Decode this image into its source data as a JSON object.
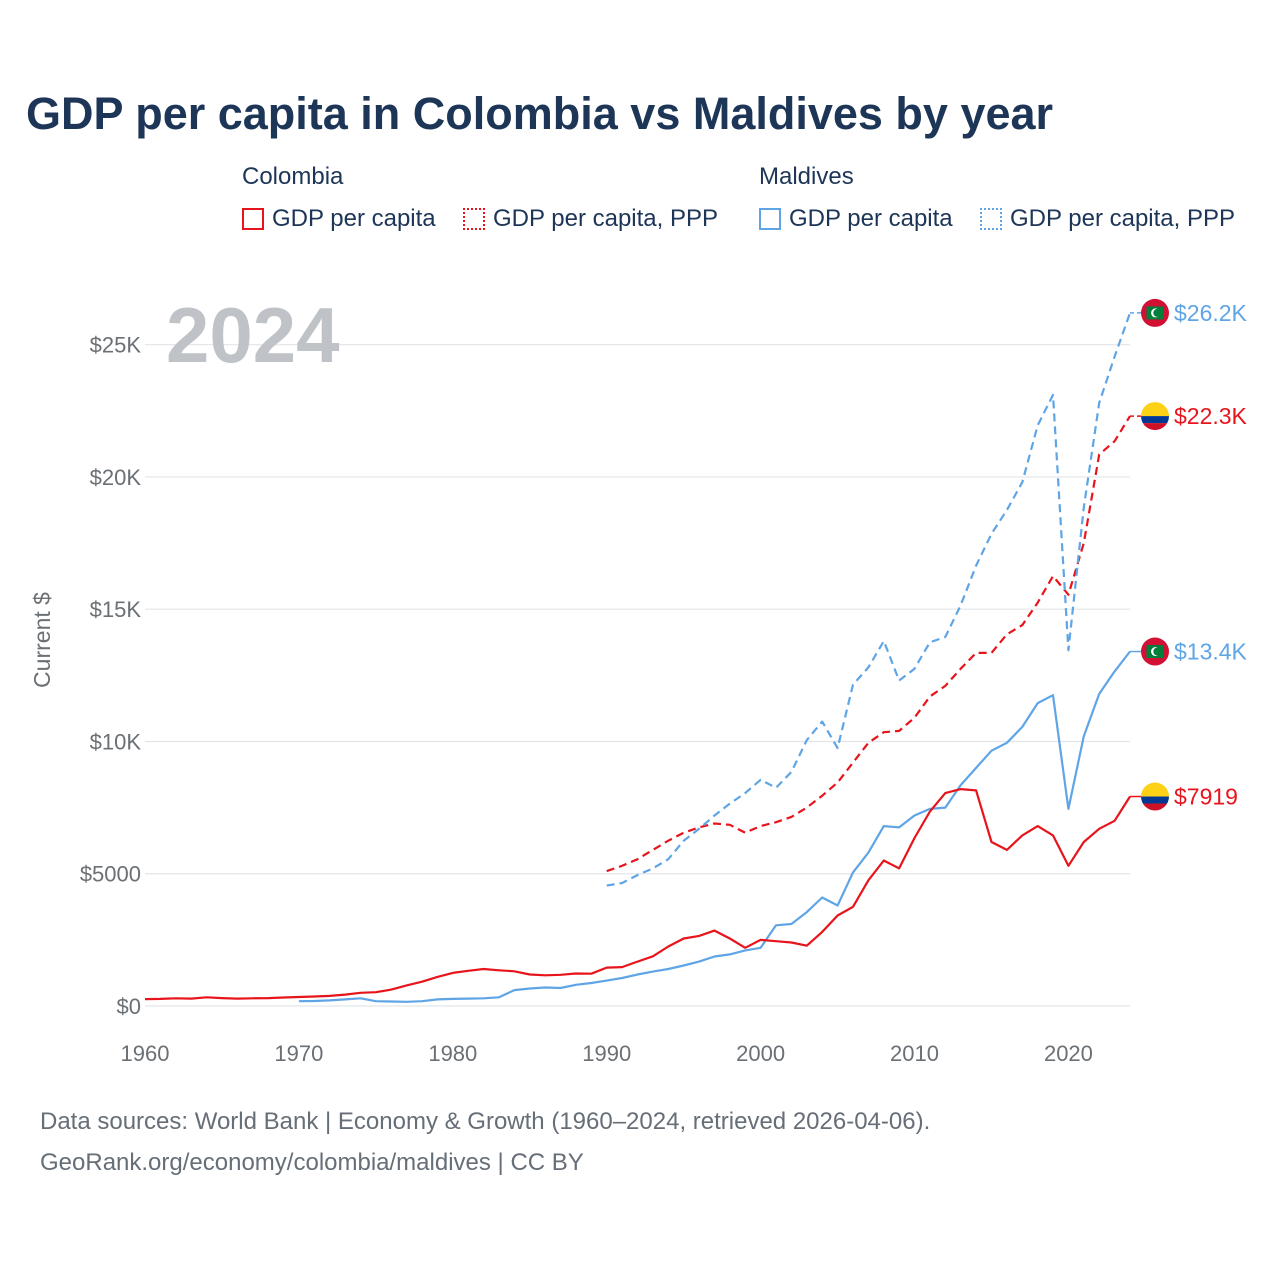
{
  "page": {
    "title": "GDP per capita in Colombia vs Maldives by year",
    "footer_line1": "Data sources: World Bank | Economy & Growth (1960–2024, retrieved 2026-04-06).",
    "footer_line2": "GeoRank.org/economy/colombia/maldives | CC BY"
  },
  "legend": {
    "groups": [
      {
        "title": "Colombia",
        "color": "#e8141c",
        "items": [
          {
            "label": "GDP per capita",
            "style": "solid"
          },
          {
            "label": "GDP per capita, PPP",
            "style": "dotted"
          }
        ]
      },
      {
        "title": "Maldives",
        "color": "#5fa5e6",
        "items": [
          {
            "label": "GDP per capita",
            "style": "solid"
          },
          {
            "label": "GDP per capita, PPP",
            "style": "dotted"
          }
        ]
      }
    ]
  },
  "chart_data": {
    "type": "line",
    "title": "GDP per capita in Colombia vs Maldives by year",
    "ylabel": "Current $",
    "xlabel": "",
    "year_label": "2024",
    "xlim": [
      1960,
      2024
    ],
    "ylim": [
      0,
      26500
    ],
    "x_ticks": [
      1960,
      1970,
      1980,
      1990,
      2000,
      2010,
      2020
    ],
    "x_tick_labels": [
      "1960",
      "1970",
      "1980",
      "1990",
      "2000",
      "2010",
      "2020"
    ],
    "y_ticks": [
      0,
      5000,
      10000,
      15000,
      20000,
      25000
    ],
    "y_tick_labels": [
      "$0",
      "$5000",
      "$10K",
      "$15K",
      "$20K",
      "$25K"
    ],
    "series": [
      {
        "name": "Colombia GDP per capita, PPP",
        "country": "Colombia",
        "color": "#e8141c",
        "dash": "dashed",
        "end_label": "$22.3K",
        "x": [
          1990,
          1991,
          1992,
          1993,
          1994,
          1995,
          1996,
          1997,
          1998,
          1999,
          2000,
          2001,
          2002,
          2003,
          2004,
          2005,
          2006,
          2007,
          2008,
          2009,
          2010,
          2011,
          2012,
          2013,
          2014,
          2015,
          2016,
          2017,
          2018,
          2019,
          2020,
          2021,
          2022,
          2023,
          2024
        ],
        "values": [
          5100,
          5300,
          5550,
          5900,
          6250,
          6550,
          6750,
          6900,
          6850,
          6550,
          6800,
          6950,
          7150,
          7500,
          7950,
          8450,
          9200,
          9950,
          10350,
          10400,
          10900,
          11700,
          12100,
          12750,
          13350,
          13350,
          14050,
          14400,
          15250,
          16250,
          15550,
          17500,
          20850,
          21350,
          22300
        ]
      },
      {
        "name": "Maldives GDP per capita, PPP",
        "country": "Maldives",
        "color": "#5fa5e6",
        "dash": "dashed",
        "end_label": "$26.2K",
        "x": [
          1990,
          1991,
          1992,
          1993,
          1994,
          1995,
          1996,
          1997,
          1998,
          1999,
          2000,
          2001,
          2002,
          2003,
          2004,
          2005,
          2006,
          2007,
          2008,
          2009,
          2010,
          2011,
          2012,
          2013,
          2014,
          2015,
          2016,
          2017,
          2018,
          2019,
          2020,
          2021,
          2022,
          2023,
          2024
        ],
        "values": [
          4550,
          4650,
          4950,
          5200,
          5550,
          6250,
          6700,
          7200,
          7650,
          8050,
          8550,
          8250,
          8850,
          10050,
          10750,
          9750,
          12150,
          12800,
          13800,
          12300,
          12750,
          13750,
          13950,
          15150,
          16650,
          17850,
          18750,
          19800,
          21950,
          23100,
          13450,
          18850,
          22800,
          24550,
          26200
        ]
      },
      {
        "name": "Maldives GDP per capita",
        "country": "Maldives",
        "color": "#5fa5e6",
        "dash": "solid",
        "end_label": "$13.4K",
        "x": [
          1970,
          1971,
          1972,
          1973,
          1974,
          1975,
          1976,
          1977,
          1978,
          1979,
          1980,
          1981,
          1982,
          1983,
          1984,
          1985,
          1986,
          1987,
          1988,
          1989,
          1990,
          1991,
          1992,
          1993,
          1994,
          1995,
          1996,
          1997,
          1998,
          1999,
          2000,
          2001,
          2002,
          2003,
          2004,
          2005,
          2006,
          2007,
          2008,
          2009,
          2010,
          2011,
          2012,
          2013,
          2014,
          2015,
          2016,
          2017,
          2018,
          2019,
          2020,
          2021,
          2022,
          2023,
          2024
        ],
        "values": [
          180,
          190,
          210,
          250,
          290,
          180,
          170,
          160,
          180,
          250,
          270,
          280,
          290,
          330,
          600,
          660,
          700,
          680,
          800,
          870,
          960,
          1060,
          1190,
          1300,
          1400,
          1530,
          1680,
          1870,
          1950,
          2100,
          2200,
          3050,
          3100,
          3550,
          4100,
          3800,
          5050,
          5800,
          6800,
          6750,
          7200,
          7450,
          7500,
          8350,
          9000,
          9650,
          9950,
          10550,
          11450,
          11750,
          7450,
          10200,
          11800,
          12650,
          13400
        ]
      },
      {
        "name": "Colombia GDP per capita",
        "country": "Colombia",
        "color": "#e8141c",
        "dash": "solid",
        "end_label": "$7919",
        "x": [
          1960,
          1961,
          1962,
          1963,
          1964,
          1965,
          1966,
          1967,
          1968,
          1969,
          1970,
          1971,
          1972,
          1973,
          1974,
          1975,
          1976,
          1977,
          1978,
          1979,
          1980,
          1981,
          1982,
          1983,
          1984,
          1985,
          1986,
          1987,
          1988,
          1989,
          1990,
          1991,
          1992,
          1993,
          1994,
          1995,
          1996,
          1997,
          1998,
          1999,
          2000,
          2001,
          2002,
          2003,
          2004,
          2005,
          2006,
          2007,
          2008,
          2009,
          2010,
          2011,
          2012,
          2013,
          2014,
          2015,
          2016,
          2017,
          2018,
          2019,
          2020,
          2021,
          2022,
          2023,
          2024
        ],
        "values": [
          260,
          270,
          290,
          280,
          330,
          300,
          280,
          290,
          300,
          320,
          340,
          360,
          380,
          430,
          500,
          520,
          620,
          780,
          920,
          1100,
          1250,
          1330,
          1400,
          1350,
          1310,
          1190,
          1160,
          1180,
          1230,
          1220,
          1450,
          1470,
          1680,
          1880,
          2250,
          2550,
          2650,
          2850,
          2550,
          2200,
          2500,
          2450,
          2400,
          2280,
          2800,
          3420,
          3750,
          4750,
          5500,
          5200,
          6350,
          7350,
          8050,
          8200,
          8150,
          6200,
          5900,
          6450,
          6800,
          6450,
          5300,
          6200,
          6700,
          7000,
          7919
        ]
      }
    ]
  }
}
